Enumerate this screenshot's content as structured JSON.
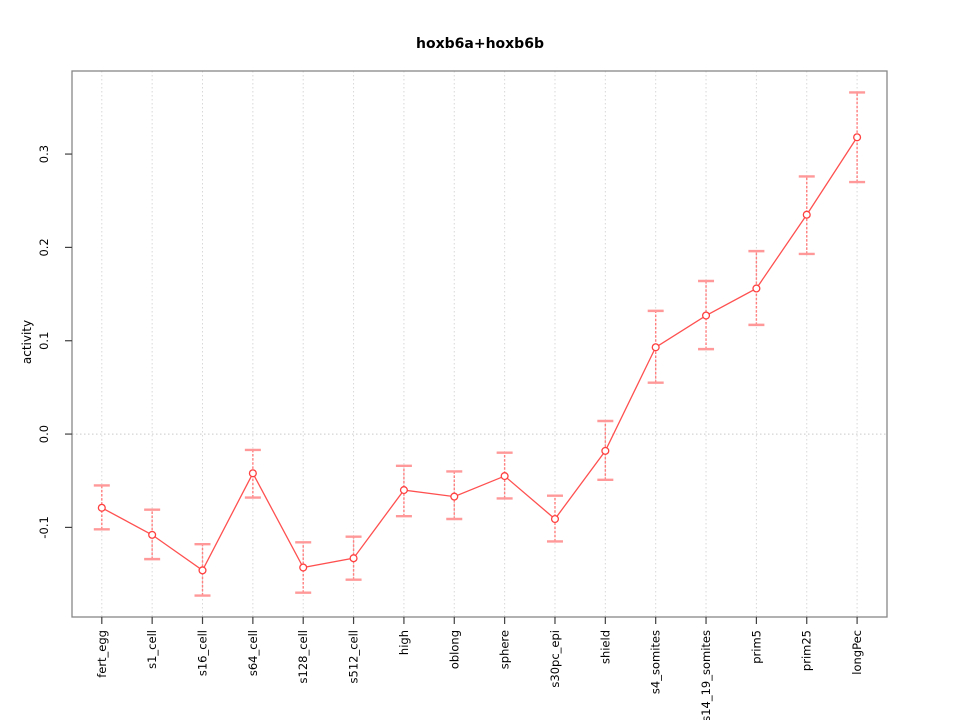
{
  "chart_data": {
    "type": "line",
    "title": "hoxb6a+hoxb6b",
    "xlabel": "",
    "ylabel": "activity",
    "categories": [
      "fert_egg",
      "s1_cell",
      "s16_cell",
      "s64_cell",
      "s128_cell",
      "s512_cell",
      "high",
      "oblong",
      "sphere",
      "s30pc_epi",
      "shield",
      "s4_somites",
      "s14_19_somites",
      "prim5",
      "prim25",
      "longPec"
    ],
    "series": [
      {
        "name": "activity",
        "values": [
          -0.079,
          -0.108,
          -0.146,
          -0.042,
          -0.143,
          -0.133,
          -0.06,
          -0.067,
          -0.045,
          -0.091,
          -0.018,
          0.093,
          0.127,
          0.156,
          0.235,
          0.318
        ],
        "err_low": [
          -0.102,
          -0.134,
          -0.173,
          -0.068,
          -0.17,
          -0.156,
          -0.088,
          -0.091,
          -0.069,
          -0.115,
          -0.049,
          0.055,
          0.091,
          0.117,
          0.193,
          0.27
        ],
        "err_high": [
          -0.055,
          -0.081,
          -0.118,
          -0.017,
          -0.116,
          -0.11,
          -0.034,
          -0.04,
          -0.02,
          -0.066,
          0.014,
          0.132,
          0.164,
          0.196,
          0.276,
          0.366
        ]
      }
    ],
    "ytick_labels": [
      "-0.1",
      "0.0",
      "0.1",
      "0.2",
      "0.3"
    ],
    "yticks": [
      -0.1,
      0.0,
      0.1,
      0.2,
      0.3
    ],
    "ylim": [
      -0.196,
      0.389
    ],
    "grid": "vertical dotted at each category, horizontal dotted at 0.0",
    "legend": "none",
    "marker": "open-circle",
    "colors": {
      "line": "#ff5050",
      "error_bar": "#ff9999",
      "error_line": "#ff7f7f",
      "point": "#ff4040",
      "grid": "#d8d8d8",
      "zero_line": "#c9c9c9",
      "box": "#878787",
      "tick": "#404040",
      "text": "#000000",
      "background": "#ffffff"
    }
  }
}
